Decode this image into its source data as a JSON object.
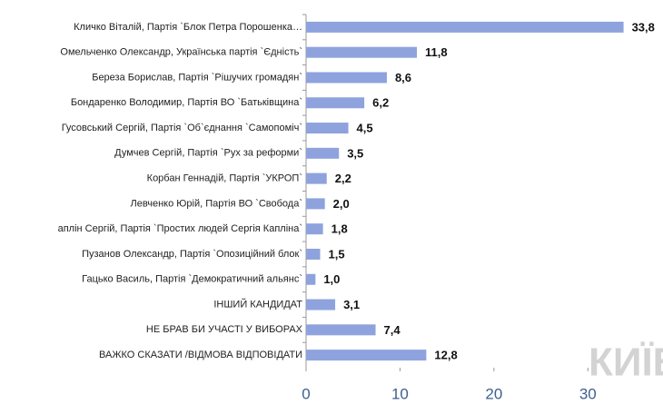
{
  "chart_data": {
    "type": "bar",
    "orientation": "horizontal",
    "categories": [
      "Кличко Віталій, Партія `Блок Петра Порошенка…",
      "Омельченко Олександр, Українська партія `Єдність`",
      "Береза Борислав, Партія `Рішучих громадян`",
      "Бондаренко Володимир, Партія ВО `Батьківщина`",
      "Гусовський Сергій, Партія `Об`єднання `Самопоміч`",
      "Думчев Сергій, Партія `Рух за реформи`",
      "Корбан Геннадій, Партія `УКРОП`",
      "Левченко Юрій, Партія ВО `Свобода`",
      "аплін Сергій, Партія `Простих людей Сергія Капліна`",
      "Пузанов Олександр, Партія `Опозиційний блок`",
      "Гацько Василь, Партія `Демократичний альянс`",
      "ІНШИЙ КАНДИДАТ",
      "НЕ БРАВ БИ УЧАСТІ У ВИБОРАХ",
      "ВАЖКО СКАЗАТИ /ВІДМОВА ВІДПОВІДАТИ"
    ],
    "values": [
      33.8,
      11.8,
      8.6,
      6.2,
      4.5,
      3.5,
      2.2,
      2.0,
      1.8,
      1.5,
      1.0,
      3.1,
      7.4,
      12.8
    ],
    "value_labels": [
      "33,8",
      "11,8",
      "8,6",
      "6,2",
      "4,5",
      "3,5",
      "2,2",
      "2,0",
      "1,8",
      "1,5",
      "1,0",
      "3,1",
      "7,4",
      "12,8"
    ],
    "color": "#8ea3dd",
    "xlim": [
      0,
      35
    ],
    "xticks": [
      0,
      10,
      20,
      30
    ],
    "watermark": "КИЇВ"
  }
}
